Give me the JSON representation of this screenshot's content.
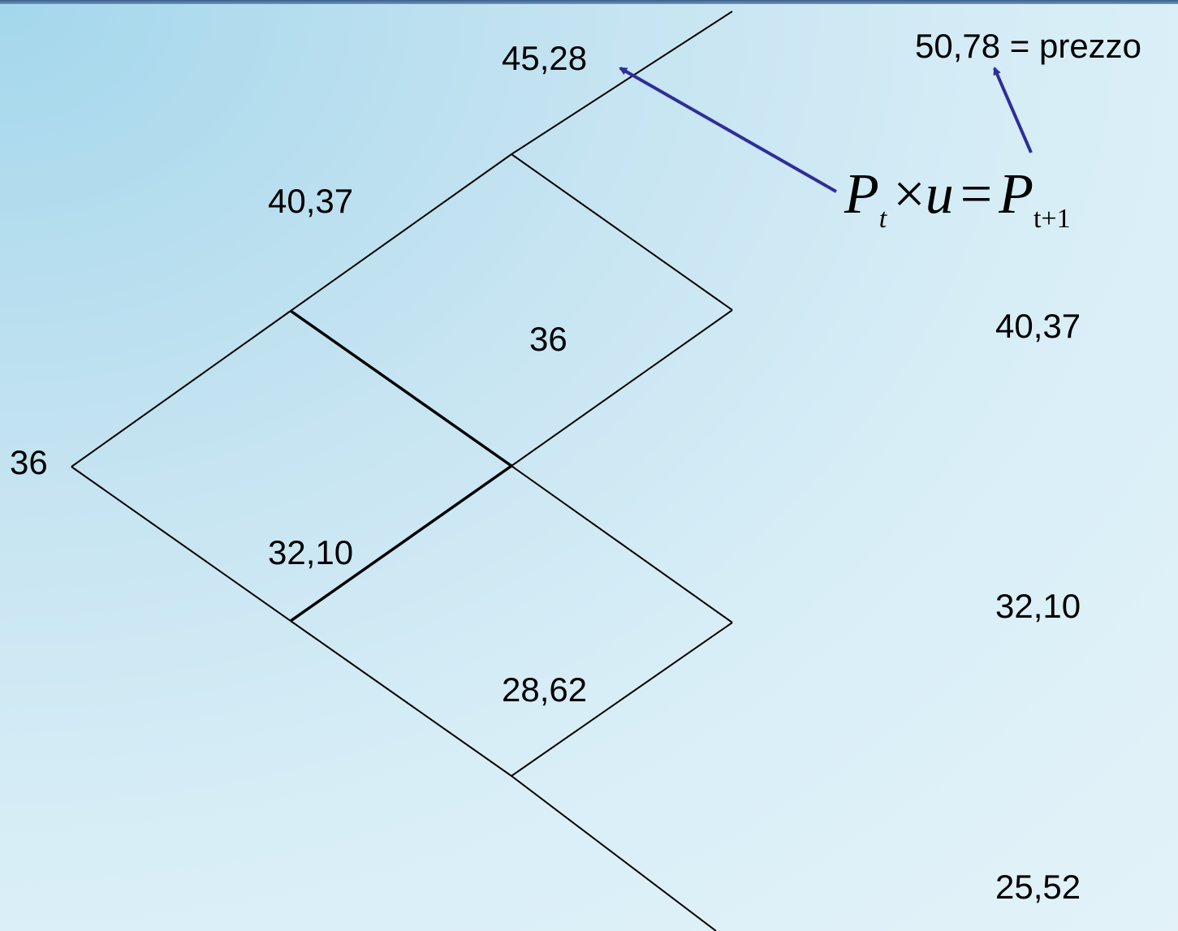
{
  "tree": {
    "root": "36",
    "step1": {
      "up": "40,37",
      "down": "32,10"
    },
    "step2": {
      "up": "45,28",
      "mid": "36",
      "down": "28,62"
    },
    "step3": {
      "up_expr": "50,78 = prezzo",
      "upmid": "40,37",
      "downmid": "32,10",
      "down": "25,52"
    }
  },
  "formula": {
    "base": "P",
    "sub_left": "t",
    "times": "×",
    "factor": "u",
    "equals": "=",
    "sub_right": "t+1"
  },
  "colors": {
    "arrow": "#2e2e99",
    "lines": "#000000"
  }
}
